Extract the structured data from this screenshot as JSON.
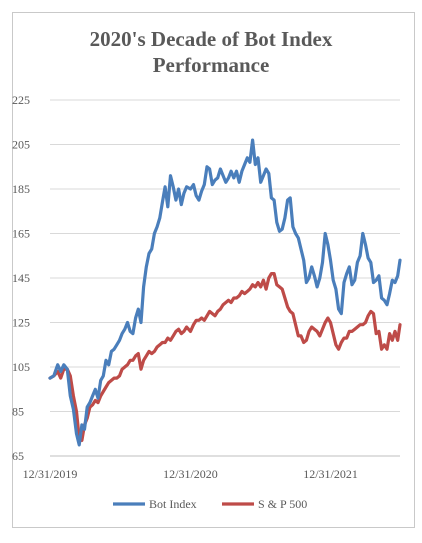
{
  "chart_data": {
    "type": "line",
    "title_line1": "2020's Decade of Bot Index",
    "title_line2": "Performance",
    "xlabel": "",
    "ylabel": "",
    "ylim": [
      65,
      225
    ],
    "yticks": [
      65,
      85,
      105,
      125,
      145,
      165,
      185,
      205,
      225
    ],
    "xlim": [
      "2019-12-31",
      "2022-06-30"
    ],
    "xticks": [
      "12/31/2019",
      "12/31/2020",
      "12/31/2021"
    ],
    "xtick_dates": [
      "2019-12-31",
      "2020-12-31",
      "2021-12-31"
    ],
    "grid": true,
    "legend_position": "bottom",
    "series": [
      {
        "name": "Bot Index",
        "color": "#4a7ebb",
        "points": [
          [
            "2019-12-31",
            100
          ],
          [
            "2020-01-10",
            101
          ],
          [
            "2020-01-20",
            106
          ],
          [
            "2020-01-28",
            103
          ],
          [
            "2020-02-05",
            106
          ],
          [
            "2020-02-14",
            104
          ],
          [
            "2020-02-22",
            92
          ],
          [
            "2020-03-01",
            86
          ],
          [
            "2020-03-09",
            75
          ],
          [
            "2020-03-16",
            70
          ],
          [
            "2020-03-23",
            79
          ],
          [
            "2020-03-30",
            77
          ],
          [
            "2020-04-06",
            87
          ],
          [
            "2020-04-13",
            89
          ],
          [
            "2020-04-20",
            92
          ],
          [
            "2020-04-27",
            95
          ],
          [
            "2020-05-04",
            91
          ],
          [
            "2020-05-11",
            99
          ],
          [
            "2020-05-18",
            101
          ],
          [
            "2020-05-25",
            108
          ],
          [
            "2020-06-01",
            106
          ],
          [
            "2020-06-08",
            112
          ],
          [
            "2020-06-15",
            113
          ],
          [
            "2020-06-22",
            115
          ],
          [
            "2020-06-29",
            117
          ],
          [
            "2020-07-06",
            120
          ],
          [
            "2020-07-13",
            122
          ],
          [
            "2020-07-20",
            125
          ],
          [
            "2020-07-27",
            121
          ],
          [
            "2020-08-03",
            120
          ],
          [
            "2020-08-10",
            127
          ],
          [
            "2020-08-17",
            131
          ],
          [
            "2020-08-24",
            125
          ],
          [
            "2020-08-31",
            141
          ],
          [
            "2020-09-07",
            150
          ],
          [
            "2020-09-14",
            156
          ],
          [
            "2020-09-21",
            158
          ],
          [
            "2020-09-28",
            165
          ],
          [
            "2020-10-05",
            168
          ],
          [
            "2020-10-12",
            172
          ],
          [
            "2020-10-19",
            179
          ],
          [
            "2020-10-26",
            186
          ],
          [
            "2020-11-02",
            177
          ],
          [
            "2020-11-09",
            191
          ],
          [
            "2020-11-16",
            186
          ],
          [
            "2020-11-23",
            180
          ],
          [
            "2020-11-30",
            185
          ],
          [
            "2020-12-07",
            178
          ],
          [
            "2020-12-14",
            183
          ],
          [
            "2020-12-21",
            186
          ],
          [
            "2020-12-31",
            185
          ],
          [
            "2021-01-08",
            187
          ],
          [
            "2021-01-15",
            182
          ],
          [
            "2021-01-22",
            180
          ],
          [
            "2021-01-29",
            184
          ],
          [
            "2021-02-05",
            187
          ],
          [
            "2021-02-12",
            195
          ],
          [
            "2021-02-19",
            194
          ],
          [
            "2021-02-26",
            187
          ],
          [
            "2021-03-05",
            189
          ],
          [
            "2021-03-12",
            190
          ],
          [
            "2021-03-19",
            194
          ],
          [
            "2021-03-26",
            191
          ],
          [
            "2021-04-02",
            188
          ],
          [
            "2021-04-09",
            190
          ],
          [
            "2021-04-16",
            193
          ],
          [
            "2021-04-23",
            190
          ],
          [
            "2021-04-30",
            193
          ],
          [
            "2021-05-07",
            188
          ],
          [
            "2021-05-14",
            193
          ],
          [
            "2021-05-21",
            196
          ],
          [
            "2021-05-28",
            199
          ],
          [
            "2021-06-04",
            197
          ],
          [
            "2021-06-11",
            207
          ],
          [
            "2021-06-18",
            196
          ],
          [
            "2021-06-25",
            199
          ],
          [
            "2021-07-02",
            188
          ],
          [
            "2021-07-09",
            191
          ],
          [
            "2021-07-16",
            194
          ],
          [
            "2021-07-23",
            192
          ],
          [
            "2021-07-30",
            181
          ],
          [
            "2021-08-06",
            180
          ],
          [
            "2021-08-13",
            170
          ],
          [
            "2021-08-20",
            166
          ],
          [
            "2021-08-27",
            167
          ],
          [
            "2021-09-03",
            172
          ],
          [
            "2021-09-10",
            180
          ],
          [
            "2021-09-17",
            181
          ],
          [
            "2021-09-24",
            168
          ],
          [
            "2021-10-01",
            165
          ],
          [
            "2021-10-08",
            163
          ],
          [
            "2021-10-15",
            158
          ],
          [
            "2021-10-22",
            153
          ],
          [
            "2021-10-29",
            143
          ],
          [
            "2021-11-05",
            145
          ],
          [
            "2021-11-12",
            150
          ],
          [
            "2021-11-19",
            146
          ],
          [
            "2021-11-26",
            141
          ],
          [
            "2021-12-03",
            145
          ],
          [
            "2021-12-10",
            152
          ],
          [
            "2021-12-17",
            165
          ],
          [
            "2021-12-24",
            160
          ],
          [
            "2021-12-31",
            153
          ],
          [
            "2022-01-07",
            144
          ],
          [
            "2022-01-14",
            140
          ],
          [
            "2022-01-21",
            131
          ],
          [
            "2022-01-28",
            129
          ],
          [
            "2022-02-04",
            143
          ],
          [
            "2022-02-11",
            147
          ],
          [
            "2022-02-18",
            150
          ],
          [
            "2022-02-25",
            142
          ],
          [
            "2022-03-04",
            144
          ],
          [
            "2022-03-11",
            152
          ],
          [
            "2022-03-18",
            155
          ],
          [
            "2022-03-25",
            165
          ],
          [
            "2022-04-01",
            160
          ],
          [
            "2022-04-08",
            154
          ],
          [
            "2022-04-15",
            152
          ],
          [
            "2022-04-22",
            143
          ],
          [
            "2022-04-29",
            144
          ],
          [
            "2022-05-06",
            146
          ],
          [
            "2022-05-13",
            136
          ],
          [
            "2022-05-20",
            135
          ],
          [
            "2022-05-27",
            133
          ],
          [
            "2022-06-03",
            138
          ],
          [
            "2022-06-10",
            144
          ],
          [
            "2022-06-17",
            143
          ],
          [
            "2022-06-24",
            146
          ],
          [
            "2022-06-30",
            153
          ]
        ]
      },
      {
        "name": "S & P 500",
        "color": "#be4b48",
        "points": [
          [
            "2019-12-31",
            100
          ],
          [
            "2020-01-10",
            101
          ],
          [
            "2020-01-20",
            103
          ],
          [
            "2020-01-28",
            100
          ],
          [
            "2020-02-05",
            104
          ],
          [
            "2020-02-14",
            104
          ],
          [
            "2020-02-22",
            101
          ],
          [
            "2020-03-01",
            92
          ],
          [
            "2020-03-09",
            85
          ],
          [
            "2020-03-16",
            73
          ],
          [
            "2020-03-23",
            72
          ],
          [
            "2020-03-30",
            79
          ],
          [
            "2020-04-06",
            82
          ],
          [
            "2020-04-13",
            87
          ],
          [
            "2020-04-20",
            88
          ],
          [
            "2020-04-27",
            90
          ],
          [
            "2020-05-04",
            89
          ],
          [
            "2020-05-11",
            92
          ],
          [
            "2020-05-18",
            94
          ],
          [
            "2020-05-25",
            96
          ],
          [
            "2020-06-01",
            98
          ],
          [
            "2020-06-08",
            99
          ],
          [
            "2020-06-15",
            100
          ],
          [
            "2020-06-22",
            100
          ],
          [
            "2020-06-29",
            101
          ],
          [
            "2020-07-06",
            104
          ],
          [
            "2020-07-13",
            105
          ],
          [
            "2020-07-20",
            106
          ],
          [
            "2020-07-27",
            108
          ],
          [
            "2020-08-03",
            108
          ],
          [
            "2020-08-10",
            110
          ],
          [
            "2020-08-17",
            111
          ],
          [
            "2020-08-24",
            104
          ],
          [
            "2020-08-31",
            108
          ],
          [
            "2020-09-07",
            110
          ],
          [
            "2020-09-14",
            112
          ],
          [
            "2020-09-21",
            111
          ],
          [
            "2020-09-28",
            112
          ],
          [
            "2020-10-05",
            114
          ],
          [
            "2020-10-12",
            115
          ],
          [
            "2020-10-19",
            116
          ],
          [
            "2020-10-26",
            116
          ],
          [
            "2020-11-02",
            118
          ],
          [
            "2020-11-09",
            117
          ],
          [
            "2020-11-16",
            119
          ],
          [
            "2020-11-23",
            121
          ],
          [
            "2020-11-30",
            122
          ],
          [
            "2020-12-07",
            120
          ],
          [
            "2020-12-14",
            121
          ],
          [
            "2020-12-21",
            123
          ],
          [
            "2020-12-31",
            121
          ],
          [
            "2021-01-08",
            124
          ],
          [
            "2021-01-15",
            126
          ],
          [
            "2021-01-22",
            126
          ],
          [
            "2021-01-29",
            127
          ],
          [
            "2021-02-05",
            126
          ],
          [
            "2021-02-12",
            128
          ],
          [
            "2021-02-19",
            130
          ],
          [
            "2021-02-26",
            129
          ],
          [
            "2021-03-05",
            128
          ],
          [
            "2021-03-12",
            130
          ],
          [
            "2021-03-19",
            131
          ],
          [
            "2021-03-26",
            133
          ],
          [
            "2021-04-02",
            134
          ],
          [
            "2021-04-09",
            135
          ],
          [
            "2021-04-16",
            134
          ],
          [
            "2021-04-23",
            136
          ],
          [
            "2021-04-30",
            136
          ],
          [
            "2021-05-07",
            137
          ],
          [
            "2021-05-14",
            139
          ],
          [
            "2021-05-21",
            138
          ],
          [
            "2021-05-28",
            139
          ],
          [
            "2021-06-04",
            140
          ],
          [
            "2021-06-11",
            142
          ],
          [
            "2021-06-18",
            141
          ],
          [
            "2021-06-25",
            143
          ],
          [
            "2021-07-02",
            141
          ],
          [
            "2021-07-09",
            144
          ],
          [
            "2021-07-16",
            140
          ],
          [
            "2021-07-23",
            145
          ],
          [
            "2021-07-30",
            147
          ],
          [
            "2021-08-06",
            147
          ],
          [
            "2021-08-13",
            142
          ],
          [
            "2021-08-20",
            141
          ],
          [
            "2021-08-27",
            140
          ],
          [
            "2021-09-03",
            136
          ],
          [
            "2021-09-10",
            132
          ],
          [
            "2021-09-17",
            130
          ],
          [
            "2021-09-24",
            129
          ],
          [
            "2021-10-01",
            124
          ],
          [
            "2021-10-08",
            119
          ],
          [
            "2021-10-15",
            119
          ],
          [
            "2021-10-22",
            116
          ],
          [
            "2021-10-29",
            117
          ],
          [
            "2021-11-05",
            121
          ],
          [
            "2021-11-12",
            123
          ],
          [
            "2021-11-19",
            122
          ],
          [
            "2021-11-26",
            121
          ],
          [
            "2021-12-03",
            119
          ],
          [
            "2021-12-10",
            122
          ],
          [
            "2021-12-17",
            125
          ],
          [
            "2021-12-24",
            127
          ],
          [
            "2021-12-31",
            125
          ],
          [
            "2022-01-07",
            120
          ],
          [
            "2022-01-14",
            115
          ],
          [
            "2022-01-21",
            113
          ],
          [
            "2022-01-28",
            116
          ],
          [
            "2022-02-04",
            118
          ],
          [
            "2022-02-11",
            118
          ],
          [
            "2022-02-18",
            121
          ],
          [
            "2022-02-25",
            121
          ],
          [
            "2022-03-04",
            122
          ],
          [
            "2022-03-11",
            123
          ],
          [
            "2022-03-18",
            124
          ],
          [
            "2022-03-25",
            124
          ],
          [
            "2022-04-01",
            125
          ],
          [
            "2022-04-08",
            128
          ],
          [
            "2022-04-15",
            130
          ],
          [
            "2022-04-22",
            129
          ],
          [
            "2022-04-29",
            120
          ],
          [
            "2022-05-06",
            121
          ],
          [
            "2022-05-13",
            113
          ],
          [
            "2022-05-20",
            115
          ],
          [
            "2022-05-27",
            113
          ],
          [
            "2022-06-03",
            120
          ],
          [
            "2022-06-10",
            117
          ],
          [
            "2022-06-17",
            121
          ],
          [
            "2022-06-24",
            117
          ],
          [
            "2022-06-30",
            124
          ]
        ]
      }
    ]
  }
}
